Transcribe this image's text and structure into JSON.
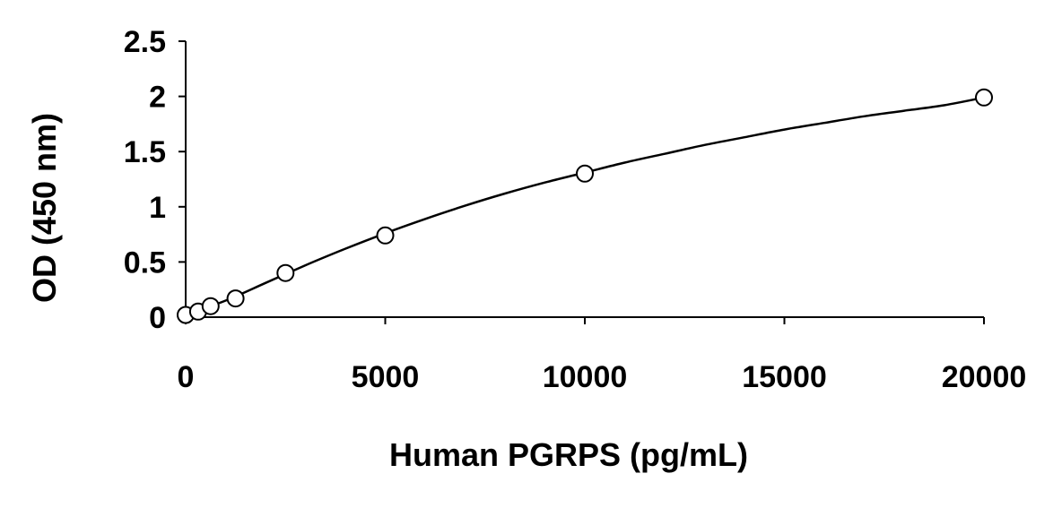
{
  "chart_data": {
    "type": "scatter",
    "title": "",
    "xlabel": "Human PGRPS (pg/mL)",
    "ylabel": "OD (450 nm)",
    "xlim": [
      0,
      20000
    ],
    "ylim": [
      0,
      2.5
    ],
    "x_ticks": [
      "0",
      "5000",
      "10000",
      "15000",
      "20000"
    ],
    "y_ticks": [
      "0",
      "0.5",
      "1",
      "1.5",
      "2",
      "2.5"
    ],
    "grid": false,
    "legend": "none",
    "series": [
      {
        "marker": "open-circle",
        "x": [
          0,
          312.5,
          625,
          1250,
          2500,
          5000,
          10000,
          20000
        ],
        "y": [
          0.02,
          0.05,
          0.1,
          0.17,
          0.4,
          0.74,
          1.3,
          1.99
        ]
      }
    ],
    "fit_curve": {
      "style": "smooth-line",
      "x": [
        0,
        1000,
        2000,
        3000,
        4000,
        5000,
        6000,
        7000,
        8000,
        9000,
        10000,
        11000,
        12000,
        13000,
        14000,
        15000,
        16000,
        17000,
        18000,
        19000,
        20000
      ],
      "y": [
        0.02,
        0.15,
        0.31,
        0.47,
        0.62,
        0.76,
        0.89,
        1.01,
        1.12,
        1.22,
        1.31,
        1.4,
        1.48,
        1.56,
        1.63,
        1.7,
        1.76,
        1.82,
        1.87,
        1.92,
        1.99
      ]
    },
    "colors": {
      "ink": "#000000",
      "background": "#ffffff",
      "marker_fill": "#ffffff"
    }
  }
}
